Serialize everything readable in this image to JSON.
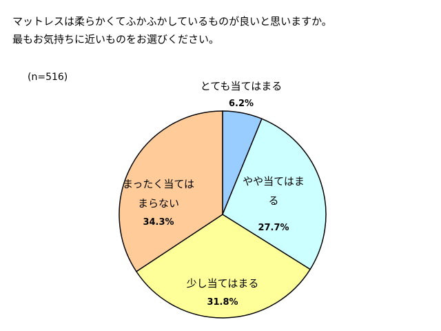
{
  "question": {
    "line1": "マットレスは柔らかくてふかふかしているものが良いと思いますか。",
    "line2": "最もお気持ちに近いものをお選びください。"
  },
  "sample": "(n=516)",
  "chart_data": {
    "type": "pie",
    "start_angle_deg": 90,
    "direction": "clockwise",
    "slices": [
      {
        "label": "とても当てはまる",
        "label_lines": [
          "とても当てはまる"
        ],
        "value": 6.2,
        "display": "6.2%",
        "color": "#99CCFF"
      },
      {
        "label": "やや当てはまる",
        "label_lines": [
          "やや当てはま",
          "る"
        ],
        "value": 27.7,
        "display": "27.7%",
        "color": "#CCFFFF"
      },
      {
        "label": "少し当てはまる",
        "label_lines": [
          "少し当てはまる"
        ],
        "value": 31.8,
        "display": "31.8%",
        "color": "#FFFF99"
      },
      {
        "label": "まったく当てはまらない",
        "label_lines": [
          "まったく当ては",
          "まらない"
        ],
        "value": 34.3,
        "display": "34.3%",
        "color": "#FFCC99"
      }
    ]
  }
}
